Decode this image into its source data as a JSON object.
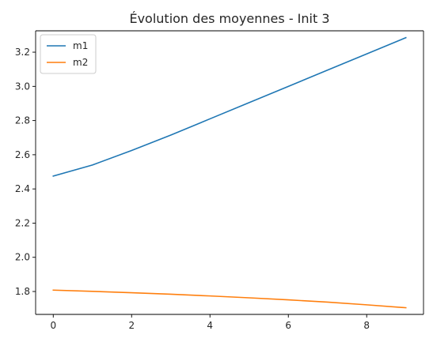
{
  "chart_data": {
    "type": "line",
    "title": "Évolution des moyennes - Init 3",
    "xlabel": "",
    "ylabel": "",
    "x": [
      0,
      1,
      2,
      3,
      4,
      5,
      6,
      7,
      8,
      9
    ],
    "series": [
      {
        "name": "m1",
        "color": "#1f77b4",
        "values": [
          2.475,
          2.54,
          2.625,
          2.715,
          2.81,
          2.905,
          3.0,
          3.095,
          3.19,
          3.285
        ]
      },
      {
        "name": "m2",
        "color": "#ff7f0e",
        "values": [
          1.808,
          1.801,
          1.793,
          1.784,
          1.774,
          1.763,
          1.751,
          1.738,
          1.722,
          1.705
        ]
      }
    ],
    "xlim": [
      -0.45,
      9.45
    ],
    "ylim": [
      1.666,
      3.325
    ],
    "xticks": [
      0,
      2,
      4,
      6,
      8
    ],
    "yticks": [
      1.8,
      2.0,
      2.2,
      2.4,
      2.6,
      2.8,
      3.0,
      3.2
    ],
    "xtick_labels": [
      "0",
      "2",
      "4",
      "6",
      "8"
    ],
    "ytick_labels": [
      "1.8",
      "2.0",
      "2.2",
      "2.4",
      "2.6",
      "2.8",
      "3.0",
      "3.2"
    ],
    "grid": false,
    "legend_position": "top-left"
  }
}
